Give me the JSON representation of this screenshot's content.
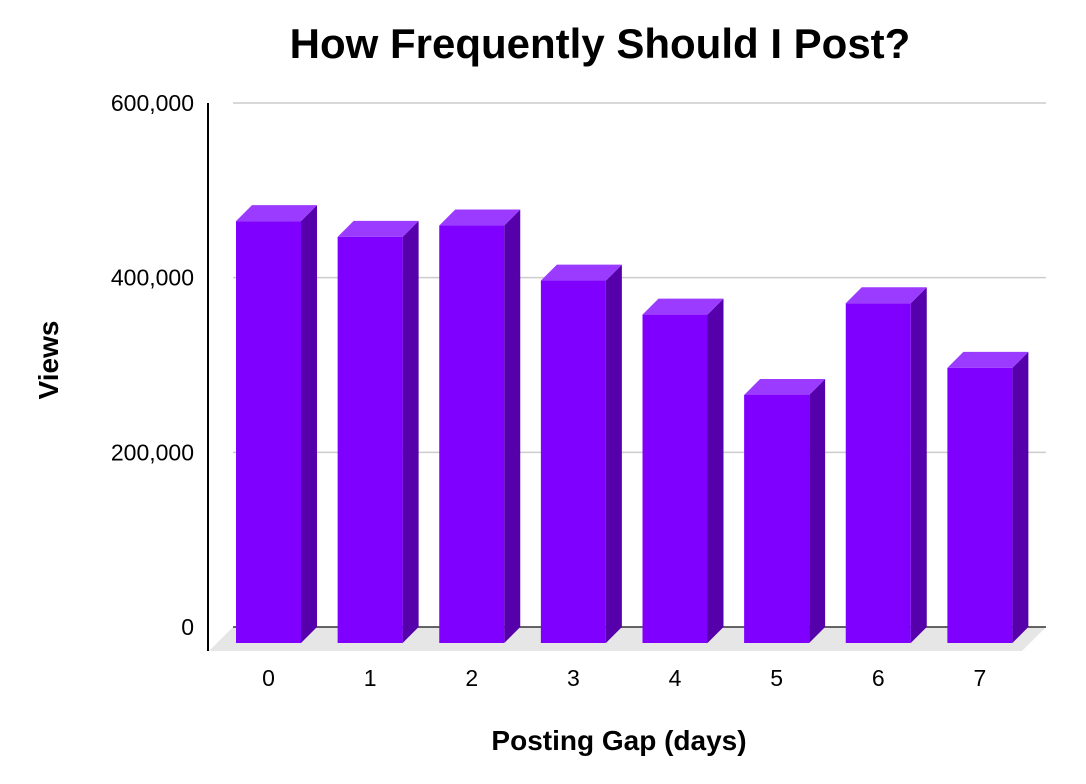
{
  "chart_data": {
    "type": "bar",
    "title": "How Frequently Should I Post?",
    "xlabel": "Posting Gap (days)",
    "ylabel": "Views",
    "categories": [
      "0",
      "1",
      "2",
      "3",
      "4",
      "5",
      "6",
      "7"
    ],
    "values": [
      483000,
      465000,
      478000,
      415000,
      376000,
      284000,
      389000,
      315000
    ],
    "ylim": [
      0,
      600000
    ],
    "yticks": [
      0,
      200000,
      400000,
      600000
    ],
    "ytick_labels": [
      "0",
      "200,000",
      "400,000",
      "600,000"
    ],
    "grid": true,
    "legend": "none",
    "style": "3d-column",
    "colors": {
      "bar_front": "#8000FF",
      "bar_top": "#9B3BFF",
      "bar_side": "#5500AA",
      "gridline": "#CCCCCC",
      "floor": "#E6E6E6",
      "axis": "#000000"
    }
  }
}
